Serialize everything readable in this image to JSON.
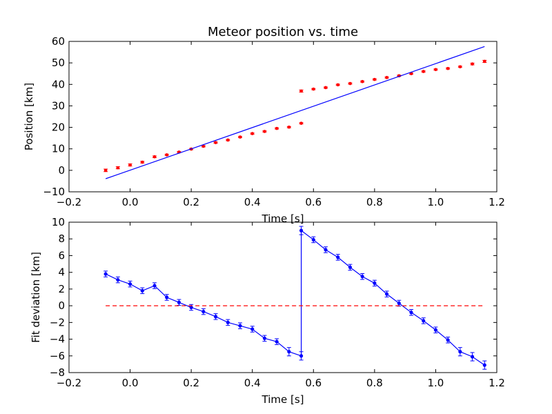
{
  "chart_data": [
    {
      "type": "scatter",
      "title": "Meteor position vs. time",
      "xlabel": "Time [s]",
      "ylabel": "Position [km]",
      "xlim": [
        -0.2,
        1.2
      ],
      "ylim": [
        -10,
        60
      ],
      "xticks": [
        "−0.2",
        "0.0",
        "0.2",
        "0.4",
        "0.6",
        "0.8",
        "1.0",
        "1.2"
      ],
      "yticks": [
        "−10",
        "0",
        "10",
        "20",
        "30",
        "40",
        "50",
        "60"
      ],
      "grid": false,
      "series": [
        {
          "kind": "points-with-errorbars",
          "color": "#ff0000",
          "x": [
            -0.08,
            -0.04,
            0.0,
            0.04,
            0.08,
            0.12,
            0.16,
            0.2,
            0.24,
            0.28,
            0.32,
            0.36,
            0.4,
            0.44,
            0.48,
            0.52,
            0.56,
            0.56,
            0.6,
            0.64,
            0.68,
            0.72,
            0.76,
            0.8,
            0.84,
            0.88,
            0.92,
            0.96,
            1.0,
            1.04,
            1.08,
            1.12,
            1.16
          ],
          "y": [
            0.0,
            1.2,
            2.5,
            3.8,
            6.3,
            7.2,
            8.5,
            9.9,
            11.2,
            12.9,
            14.1,
            15.5,
            17.1,
            18.1,
            19.5,
            20.1,
            21.9,
            36.9,
            37.8,
            38.5,
            39.8,
            40.4,
            41.3,
            42.3,
            43.2,
            44.0,
            45.0,
            46.0,
            46.9,
            47.4,
            48.2,
            49.5,
            50.7
          ],
          "err": [
            0.6,
            0.5,
            0.5,
            0.4,
            0.4,
            0.3,
            0.3,
            0.3,
            0.3,
            0.3,
            0.3,
            0.3,
            0.3,
            0.3,
            0.3,
            0.3,
            0.3,
            0.5,
            0.3,
            0.3,
            0.3,
            0.3,
            0.3,
            0.3,
            0.3,
            0.3,
            0.3,
            0.3,
            0.3,
            0.3,
            0.3,
            0.4,
            0.5
          ]
        },
        {
          "kind": "fit-line",
          "color": "#0000ff",
          "x": [
            -0.08,
            1.16
          ],
          "y": [
            -3.9,
            57.6
          ]
        }
      ]
    },
    {
      "type": "line",
      "title": "",
      "xlabel": "Time [s]",
      "ylabel": "Fit deviation [km]",
      "xlim": [
        -0.2,
        1.2
      ],
      "ylim": [
        -8,
        10
      ],
      "xticks": [
        "−0.2",
        "0.0",
        "0.2",
        "0.4",
        "0.6",
        "0.8",
        "1.0",
        "1.2"
      ],
      "yticks": [
        "−8",
        "−6",
        "−4",
        "−2",
        "0",
        "2",
        "4",
        "6",
        "8",
        "10"
      ],
      "grid": false,
      "series": [
        {
          "kind": "line-with-errorbars",
          "color": "#0000ff",
          "x": [
            -0.08,
            -0.04,
            0.0,
            0.04,
            0.08,
            0.12,
            0.16,
            0.2,
            0.24,
            0.28,
            0.32,
            0.36,
            0.4,
            0.44,
            0.48,
            0.52,
            0.56,
            0.56,
            0.6,
            0.64,
            0.68,
            0.72,
            0.76,
            0.8,
            0.84,
            0.88,
            0.92,
            0.96,
            1.0,
            1.04,
            1.08,
            1.12,
            1.16
          ],
          "y": [
            3.8,
            3.1,
            2.6,
            1.8,
            2.4,
            1.0,
            0.4,
            -0.2,
            -0.7,
            -1.3,
            -2.0,
            -2.4,
            -2.8,
            -3.9,
            -4.3,
            -5.5,
            -6.0,
            9.0,
            7.9,
            6.7,
            5.8,
            4.6,
            3.5,
            2.7,
            1.4,
            0.3,
            -0.8,
            -1.8,
            -2.9,
            -4.1,
            -5.5,
            -6.1,
            -7.1
          ]
        },
        {
          "kind": "zero-line",
          "color": "#ff0000",
          "dashed": true,
          "x": [
            -0.08,
            1.16
          ],
          "y": [
            0,
            0
          ]
        }
      ]
    }
  ]
}
